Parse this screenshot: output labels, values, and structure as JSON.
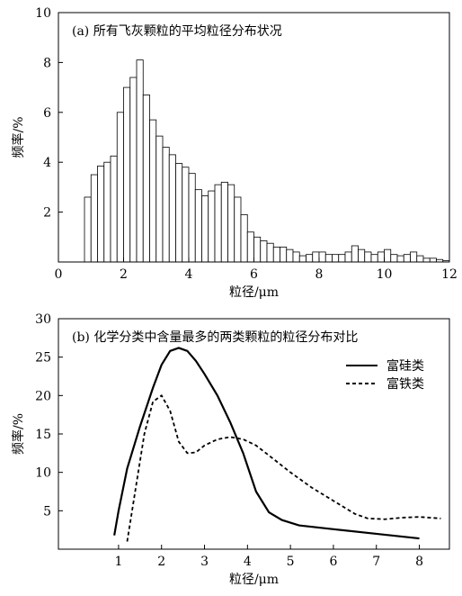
{
  "chart_data": [
    {
      "type": "histogram",
      "title": "(a) 所有飞灰颗粒的平均粒径分布状况",
      "x_label": "粒径/μm",
      "y_label": "频率/%",
      "bins": [
        0.8,
        1.0,
        1.2,
        1.4,
        1.6,
        1.8,
        2.0,
        2.2,
        2.4,
        2.6,
        2.8,
        3.0,
        3.2,
        3.4,
        3.6,
        3.8,
        4.0,
        4.2,
        4.4,
        4.6,
        4.8,
        5.0,
        5.2,
        5.4,
        5.6,
        5.8,
        6.0,
        6.2,
        6.4,
        6.6,
        6.8,
        7.0,
        7.2,
        7.4,
        7.6,
        7.8,
        8.0,
        8.2,
        8.4,
        8.6,
        8.8,
        9.0,
        9.2,
        9.4,
        9.6,
        9.8,
        10.0,
        10.2,
        10.4,
        10.6,
        10.8,
        11.0,
        11.2,
        11.4,
        11.6,
        11.8,
        12.0
      ],
      "values": [
        2.6,
        3.5,
        3.85,
        4.0,
        4.25,
        6.0,
        7.0,
        7.4,
        8.1,
        6.7,
        5.7,
        5.05,
        4.6,
        4.3,
        3.95,
        3.8,
        3.55,
        2.9,
        2.65,
        2.85,
        3.1,
        3.2,
        3.1,
        2.6,
        1.9,
        1.2,
        1.0,
        0.85,
        0.75,
        0.6,
        0.6,
        0.5,
        0.4,
        0.25,
        0.3,
        0.4,
        0.4,
        0.3,
        0.3,
        0.3,
        0.4,
        0.65,
        0.5,
        0.4,
        0.3,
        0.4,
        0.5,
        0.3,
        0.25,
        0.3,
        0.4,
        0.25,
        0.15,
        0.15,
        0.1,
        0.05
      ],
      "color": "#ffffff",
      "xlim": [
        0,
        12
      ],
      "xticks": [
        0,
        2,
        4,
        6,
        8,
        10,
        12
      ],
      "ylim": [
        0,
        10
      ],
      "yticks": [
        2,
        4,
        6,
        8,
        10
      ]
    },
    {
      "type": "line",
      "title": "(b) 化学分类中含量最多的两类颗粒的粒径分布对比",
      "x_label": "粒径/μm",
      "y_label": "频率/%",
      "legend": "upper right",
      "series": [
        {
          "name": "富硅类",
          "color": "#000000",
          "dash": "solid",
          "x": [
            0.9,
            1.0,
            1.2,
            1.5,
            1.8,
            2.0,
            2.2,
            2.4,
            2.6,
            2.8,
            3.0,
            3.3,
            3.6,
            3.9,
            4.2,
            4.5,
            4.8,
            5.2,
            6.0,
            7.0,
            8.0
          ],
          "values": [
            1.8,
            5,
            10.5,
            16,
            21,
            24,
            25.8,
            26.2,
            25.8,
            24.5,
            22.8,
            20,
            16.5,
            12.5,
            7.5,
            4.8,
            3.8,
            3.1,
            2.6,
            2.0,
            1.4
          ]
        },
        {
          "name": "富铁类",
          "color": "#000000",
          "dash": "dashed",
          "x": [
            1.2,
            1.4,
            1.6,
            1.8,
            2.0,
            2.2,
            2.4,
            2.6,
            2.8,
            3.0,
            3.3,
            3.6,
            3.9,
            4.2,
            4.5,
            5.0,
            5.5,
            6.0,
            6.5,
            6.8,
            7.2,
            7.6,
            8.0,
            8.5
          ],
          "values": [
            1,
            8,
            15,
            19.2,
            20,
            18,
            14,
            12.5,
            12.6,
            13.5,
            14.3,
            14.6,
            14.3,
            13.5,
            12.2,
            10,
            8,
            6.3,
            4.6,
            4,
            3.9,
            4.1,
            4.2,
            4.0
          ]
        }
      ],
      "xlim": [
        -0.4,
        8.7
      ],
      "xticks": [
        1,
        2,
        3,
        4,
        5,
        6,
        7,
        8
      ],
      "ylim": [
        0,
        30
      ],
      "yticks": [
        5,
        10,
        15,
        20,
        25,
        30
      ]
    }
  ]
}
